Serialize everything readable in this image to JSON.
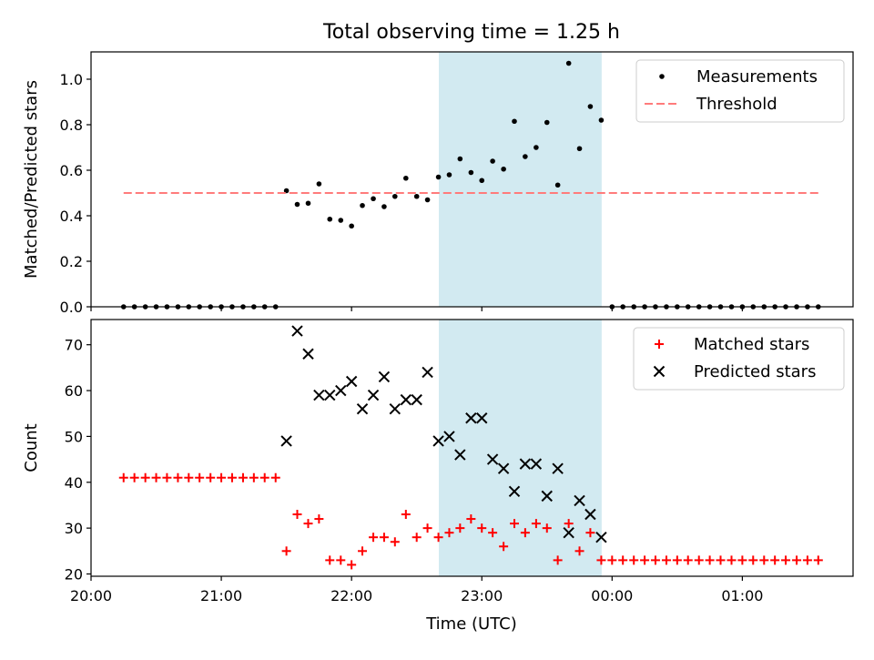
{
  "chart_data": {
    "title": "Total observing time = 1.25 h",
    "xlabel": "Time (UTC)",
    "x_tick_labels": [
      "20:00",
      "21:00",
      "22:00",
      "23:00",
      "00:00",
      "01:00"
    ],
    "x_range_hours": [
      20.0,
      25.85
    ],
    "observing_window_hours": [
      22.67,
      23.92
    ],
    "observing_window_color": "#add8e6",
    "panels": [
      {
        "type": "scatter",
        "ylabel": "Matched/Predicted stars",
        "ylim": [
          0,
          1.12
        ],
        "yticks": [
          "0.0",
          "0.2",
          "0.4",
          "0.6",
          "0.8",
          "1.0"
        ],
        "legend_position": "top-right",
        "series": [
          {
            "name": "Measurements",
            "marker": "dot",
            "color": "#000000",
            "x": [
              20.25,
              20.333,
              20.417,
              20.5,
              20.583,
              20.667,
              20.75,
              20.833,
              20.917,
              21.0,
              21.083,
              21.167,
              21.25,
              21.333,
              21.417,
              21.5,
              21.583,
              21.667,
              21.75,
              21.833,
              21.917,
              22.0,
              22.083,
              22.167,
              22.25,
              22.333,
              22.417,
              22.5,
              22.583,
              22.667,
              22.75,
              22.833,
              22.917,
              23.0,
              23.083,
              23.167,
              23.25,
              23.333,
              23.417,
              23.5,
              23.583,
              23.667,
              23.75,
              23.833,
              23.917,
              24.0,
              24.083,
              24.167,
              24.25,
              24.333,
              24.417,
              24.5,
              24.583,
              24.667,
              24.75,
              24.833,
              24.917,
              25.0,
              25.083,
              25.167,
              25.25,
              25.333,
              25.417,
              25.5,
              25.583
            ],
            "y": [
              0,
              0,
              0,
              0,
              0,
              0,
              0,
              0,
              0,
              0,
              0,
              0,
              0,
              0,
              0,
              0.51,
              0.45,
              0.455,
              0.54,
              0.385,
              0.38,
              0.355,
              0.445,
              0.475,
              0.44,
              0.485,
              0.565,
              0.485,
              0.47,
              0.57,
              0.58,
              0.65,
              0.59,
              0.555,
              0.64,
              0.605,
              0.815,
              0.66,
              0.7,
              0.81,
              0.535,
              1.07,
              0.695,
              0.88,
              0.82,
              0,
              0,
              0,
              0,
              0,
              0,
              0,
              0,
              0,
              0,
              0,
              0,
              0,
              0,
              0,
              0,
              0,
              0,
              0,
              0
            ]
          },
          {
            "name": "Threshold",
            "type": "line",
            "style": "dashed",
            "color": "#ff7b7b",
            "x": [
              20.25,
              25.583
            ],
            "y": [
              0.5,
              0.5
            ]
          }
        ]
      },
      {
        "type": "scatter",
        "ylabel": "Count",
        "ylim": [
          19.5,
          75.5
        ],
        "yticks": [
          "20",
          "30",
          "40",
          "50",
          "60",
          "70"
        ],
        "legend_position": "top-right",
        "series": [
          {
            "name": "Matched stars",
            "marker": "plus",
            "color": "#ff0000",
            "x": [
              20.25,
              20.333,
              20.417,
              20.5,
              20.583,
              20.667,
              20.75,
              20.833,
              20.917,
              21.0,
              21.083,
              21.167,
              21.25,
              21.333,
              21.417,
              21.5,
              21.583,
              21.667,
              21.75,
              21.833,
              21.917,
              22.0,
              22.083,
              22.167,
              22.25,
              22.333,
              22.417,
              22.5,
              22.583,
              22.667,
              22.75,
              22.833,
              22.917,
              23.0,
              23.083,
              23.167,
              23.25,
              23.333,
              23.417,
              23.5,
              23.583,
              23.667,
              23.75,
              23.833,
              23.917,
              24.0,
              24.083,
              24.167,
              24.25,
              24.333,
              24.417,
              24.5,
              24.583,
              24.667,
              24.75,
              24.833,
              24.917,
              25.0,
              25.083,
              25.167,
              25.25,
              25.333,
              25.417,
              25.5,
              25.583
            ],
            "y": [
              41,
              41,
              41,
              41,
              41,
              41,
              41,
              41,
              41,
              41,
              41,
              41,
              41,
              41,
              41,
              25,
              33,
              31,
              32,
              23,
              23,
              22,
              25,
              28,
              28,
              27,
              33,
              28,
              30,
              28,
              29,
              30,
              32,
              30,
              29,
              26,
              31,
              29,
              31,
              30,
              23,
              31,
              25,
              29,
              23,
              23,
              23,
              23,
              23,
              23,
              23,
              23,
              23,
              23,
              23,
              23,
              23,
              23,
              23,
              23,
              23,
              23,
              23,
              23,
              23
            ]
          },
          {
            "name": "Predicted stars",
            "marker": "x",
            "color": "#000000",
            "x": [
              21.5,
              21.583,
              21.667,
              21.75,
              21.833,
              21.917,
              22.0,
              22.083,
              22.167,
              22.25,
              22.333,
              22.417,
              22.5,
              22.583,
              22.667,
              22.75,
              22.833,
              22.917,
              23.0,
              23.083,
              23.167,
              23.25,
              23.333,
              23.417,
              23.5,
              23.583,
              23.667,
              23.75,
              23.833,
              23.917
            ],
            "y": [
              49,
              73,
              68,
              59,
              59,
              60,
              62,
              56,
              59,
              63,
              56,
              58,
              58,
              64,
              49,
              50,
              46,
              54,
              54,
              45,
              43,
              38,
              44,
              44,
              37,
              43,
              29,
              36,
              33,
              28
            ]
          }
        ]
      }
    ]
  }
}
